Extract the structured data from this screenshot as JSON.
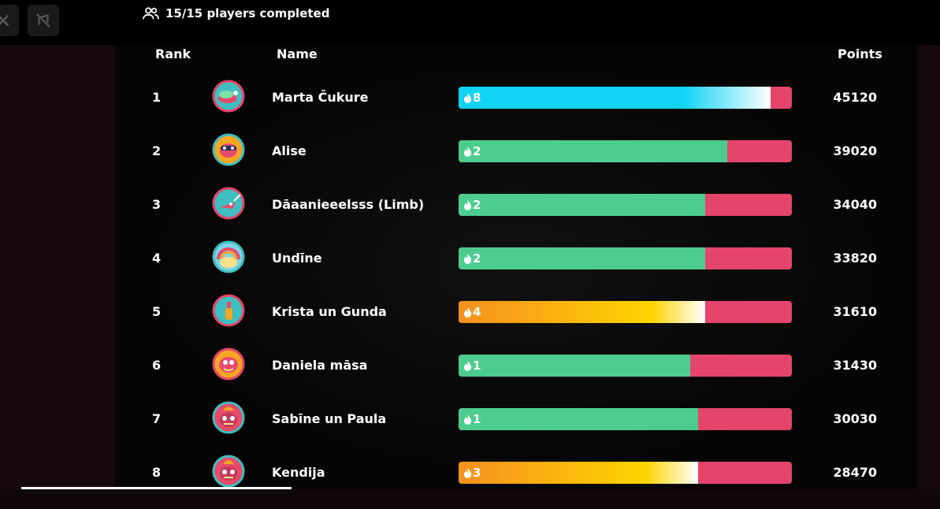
{
  "status": {
    "players_completed": "15/15 players completed"
  },
  "table": {
    "headers": {
      "rank": "Rank",
      "name": "Name",
      "points": "Points"
    },
    "rows": [
      {
        "rank": "1",
        "name": "Marta Čukure",
        "streak": "8",
        "streak_style": "blue",
        "fill_fraction": 0.935,
        "points": "45120",
        "avatar_icon": "bird-avatar-icon"
      },
      {
        "rank": "2",
        "name": "Alise",
        "streak": "2",
        "streak_style": "green",
        "fill_fraction": 0.806,
        "points": "39020",
        "avatar_icon": "masked-hero-avatar-icon"
      },
      {
        "rank": "3",
        "name": "Dāaanieeelsss (Limb)",
        "streak": "2",
        "streak_style": "green",
        "fill_fraction": 0.74,
        "points": "34040",
        "avatar_icon": "unicorn-avatar-icon"
      },
      {
        "rank": "4",
        "name": "Undīne",
        "streak": "2",
        "streak_style": "green",
        "fill_fraction": 0.74,
        "points": "33820",
        "avatar_icon": "rainbow-avatar-icon"
      },
      {
        "rank": "5",
        "name": "Krista un Gunda",
        "streak": "4",
        "streak_style": "orange",
        "fill_fraction": 0.74,
        "points": "31610",
        "avatar_icon": "bottle-avatar-icon"
      },
      {
        "rank": "6",
        "name": "Daniela māsa",
        "streak": "1",
        "streak_style": "green",
        "fill_fraction": 0.695,
        "points": "31430",
        "avatar_icon": "burger-avatar-icon"
      },
      {
        "rank": "7",
        "name": "Sabīne un Paula",
        "streak": "1",
        "streak_style": "green",
        "fill_fraction": 0.718,
        "points": "30030",
        "avatar_icon": "fire-face-avatar-icon"
      },
      {
        "rank": "8",
        "name": "Kendija",
        "streak": "3",
        "streak_style": "orange",
        "fill_fraction": 0.718,
        "points": "28470",
        "avatar_icon": "fire-face-avatar-icon"
      }
    ]
  },
  "colors": {
    "incorrect": "#e5456b",
    "green": "#4ccd8f",
    "blue": "#11d4f5",
    "orange": "#f5901f"
  }
}
